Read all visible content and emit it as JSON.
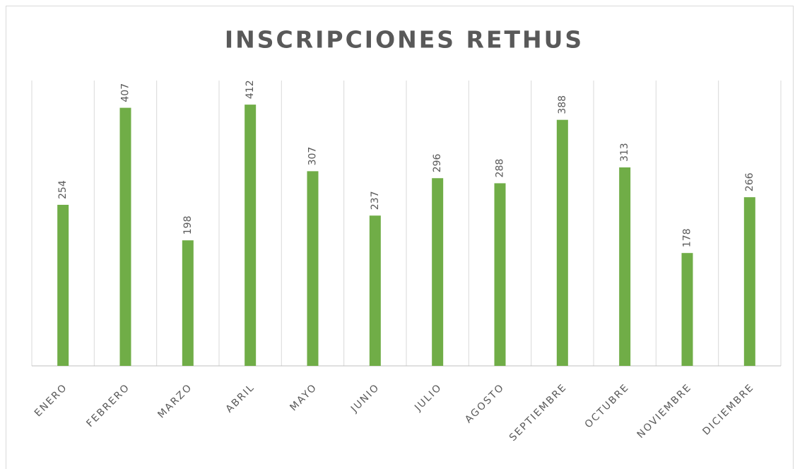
{
  "chart_data": {
    "type": "bar",
    "title": "INSCRIPCIONES RETHUS",
    "categories": [
      "ENERO",
      "FEBRERO",
      "MARZO",
      "ABRIL",
      "MAYO",
      "JUNIO",
      "JULIO",
      "AGOSTO",
      "SEPTIEMBRE",
      "OCTUBRE",
      "NOVIEMBRE",
      "DICIEMBRE"
    ],
    "values": [
      254,
      407,
      198,
      412,
      307,
      237,
      296,
      288,
      388,
      313,
      178,
      266
    ],
    "color": "#70ad47",
    "ylim": [
      0,
      450
    ],
    "grid": true
  }
}
